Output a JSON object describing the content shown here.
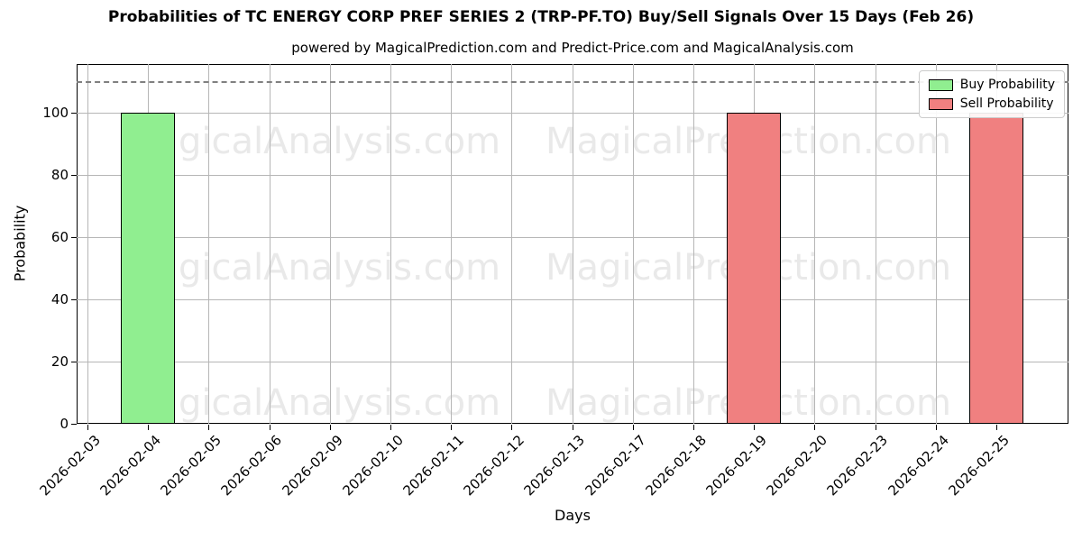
{
  "title": "Probabilities of TC ENERGY CORP PREF SERIES 2 (TRP-PF.TO) Buy/Sell Signals Over 15 Days (Feb 26)",
  "subtitle": "powered by MagicalPrediction.com and Predict-Price.com and MagicalAnalysis.com",
  "watermarks": {
    "left_text": "MagicalAnalysis.com",
    "right_text": "MagicalPrediction.com",
    "color": "#e9e9e9"
  },
  "chart_data": {
    "type": "bar",
    "categories": [
      "2026-02-03",
      "2026-02-04",
      "2026-02-05",
      "2026-02-06",
      "2026-02-09",
      "2026-02-10",
      "2026-02-11",
      "2026-02-12",
      "2026-02-13",
      "2026-02-17",
      "2026-02-18",
      "2026-02-19",
      "2026-02-20",
      "2026-02-23",
      "2026-02-24",
      "2026-02-25"
    ],
    "series": [
      {
        "name": "Buy Probability",
        "color": "#90ee90",
        "values": [
          0,
          100,
          0,
          0,
          0,
          0,
          0,
          0,
          0,
          0,
          0,
          0,
          0,
          0,
          0,
          0
        ]
      },
      {
        "name": "Sell Probability",
        "color": "#f08080",
        "values": [
          0,
          0,
          0,
          0,
          0,
          0,
          0,
          0,
          0,
          0,
          0,
          100,
          0,
          0,
          0,
          100
        ]
      }
    ],
    "xlabel": "Days",
    "ylabel": "Probability",
    "ylim": [
      0,
      115.5
    ],
    "yticks": [
      0,
      20,
      40,
      60,
      80,
      100
    ],
    "grid": true,
    "legend_position": "upper right",
    "threshold_line": {
      "y": 110,
      "style": "dashed",
      "color": "#808080"
    },
    "bar_edge_color": "#000000",
    "bar_width_ratio": 0.9
  },
  "colors": {
    "grid": "#b6b6b6",
    "axis": "#000000",
    "background": "#ffffff"
  }
}
